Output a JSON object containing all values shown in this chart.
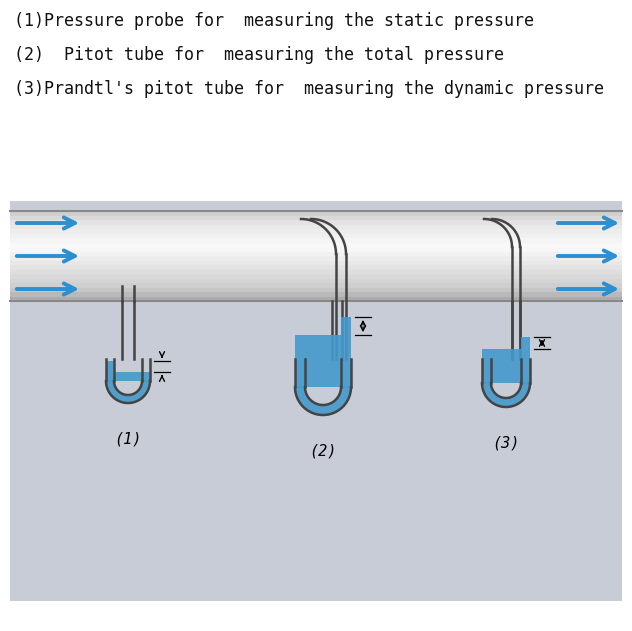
{
  "bg_gray": "#c8ccd6",
  "white_bg": "#ffffff",
  "text_color": "#111111",
  "blue": "#2b8fd0",
  "liquid": "#4499cc",
  "pipe_top_color": "#e8e8e8",
  "pipe_mid_color": "#d4d4d4",
  "pipe_bot_color": "#bbbbbb",
  "probe": "#444444",
  "line1": "(1)Pressure probe for  measuring the static pressure",
  "line2": "(2)  Pitot tube for  measuring the total pressure",
  "line3": "(3)Prandtl's pitot tube for  measuring the dynamic pressure",
  "lbl1": "(1)",
  "lbl2": "(2)",
  "lbl3": "(3)"
}
